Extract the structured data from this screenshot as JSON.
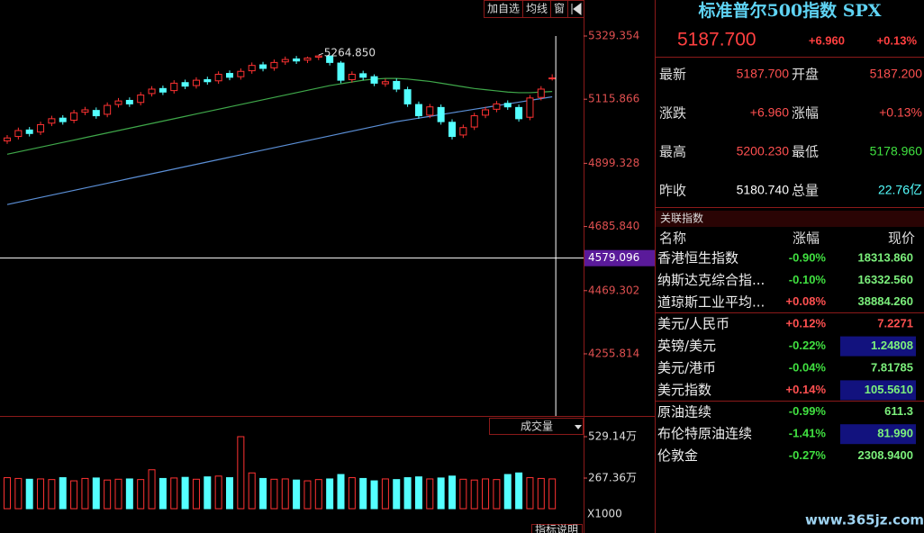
{
  "toolbar": [
    "加自选",
    "均线",
    "窗"
  ],
  "chart_data": {
    "type": "candlestick",
    "open": [
      4975,
      4990,
      5012,
      5005,
      5035,
      5052,
      5045,
      5072,
      5078,
      5065,
      5098,
      5112,
      5105,
      5135,
      5152,
      5145,
      5172,
      5162,
      5182,
      5178,
      5203,
      5192,
      5212,
      5232,
      5222,
      5242,
      5252,
      5248,
      5258,
      5262,
      5238,
      5182,
      5202,
      5192,
      5168,
      5176,
      5148,
      5098,
      5062,
      5088,
      5038,
      4995,
      5022,
      5062,
      5082,
      5102,
      5088,
      5055,
      5122,
      5187.2
    ],
    "high": [
      4995,
      5020,
      5022,
      5040,
      5060,
      5062,
      5080,
      5090,
      5088,
      5105,
      5120,
      5122,
      5140,
      5160,
      5162,
      5180,
      5182,
      5190,
      5192,
      5210,
      5213,
      5220,
      5240,
      5242,
      5250,
      5260,
      5262,
      5260,
      5264.85,
      5263,
      5245,
      5210,
      5212,
      5200,
      5185,
      5186,
      5158,
      5108,
      5100,
      5098,
      5048,
      5030,
      5070,
      5090,
      5110,
      5112,
      5098,
      5130,
      5160,
      5200.23
    ],
    "low": [
      4965,
      4980,
      4990,
      4995,
      5025,
      5030,
      5035,
      5062,
      5050,
      5055,
      5088,
      5090,
      5095,
      5125,
      5130,
      5135,
      5150,
      5152,
      5165,
      5168,
      5180,
      5182,
      5202,
      5210,
      5212,
      5232,
      5235,
      5238,
      5248,
      5230,
      5170,
      5172,
      5180,
      5160,
      5158,
      5140,
      5090,
      5050,
      5052,
      5030,
      4980,
      4985,
      5012,
      5052,
      5072,
      5080,
      5040,
      5045,
      5112,
      5178.96
    ],
    "close": [
      4985,
      5010,
      5000,
      5030,
      5050,
      5040,
      5070,
      5080,
      5060,
      5095,
      5110,
      5100,
      5130,
      5150,
      5140,
      5170,
      5160,
      5180,
      5175,
      5200,
      5190,
      5210,
      5230,
      5220,
      5240,
      5250,
      5245,
      5255,
      5262,
      5240,
      5180,
      5200,
      5190,
      5170,
      5175,
      5150,
      5100,
      5060,
      5090,
      5040,
      4990,
      5020,
      5060,
      5080,
      5100,
      5090,
      5050,
      5120,
      5150,
      5187.7
    ],
    "up_color": "#ff3232",
    "down_color": "#54ffff",
    "ylim": [
      4045.9,
      5390.2
    ],
    "yticks": [
      5329.354,
      5115.866,
      4899.328,
      {
        "value": 4685.84,
        "label": "4685.840"
      },
      4469.302,
      4255.814
    ],
    "crosshair_price": 4579.096,
    "max_label": {
      "value": 5264.85,
      "label": "5264.850"
    },
    "moving_averages": [
      {
        "color": "#5b8fd6",
        "values": [
          4760,
          4768,
          4776,
          4784,
          4792,
          4800,
          4808,
          4816,
          4824,
          4832,
          4840,
          4848,
          4856,
          4864,
          4872,
          4880,
          4888,
          4896,
          4904,
          4912,
          4920,
          4928,
          4936,
          4944,
          4952,
          4960,
          4968,
          4976,
          4984,
          4992,
          5000,
          5008,
          5016,
          5024,
          5032,
          5040,
          5046,
          5052,
          5058,
          5064,
          5070,
          5076,
          5082,
          5088,
          5094,
          5100,
          5106,
          5112,
          5118,
          5124
        ]
      },
      {
        "color": "#3fa84a",
        "values": [
          4930,
          4938,
          4946,
          4954,
          4962,
          4970,
          4978,
          4986,
          4994,
          5002,
          5010,
          5018,
          5026,
          5034,
          5042,
          5050,
          5058,
          5066,
          5074,
          5082,
          5090,
          5098,
          5106,
          5114,
          5122,
          5130,
          5138,
          5146,
          5154,
          5162,
          5168,
          5174,
          5180,
          5184,
          5186,
          5186,
          5184,
          5180,
          5176,
          5170,
          5164,
          5158,
          5152,
          5148,
          5144,
          5140,
          5138,
          5138,
          5140,
          5142
        ]
      }
    ],
    "volume": {
      "label": "成交量",
      "values": [
        270,
        265,
        260,
        262,
        258,
        270,
        250,
        265,
        268,
        255,
        260,
        262,
        258,
        320,
        265,
        268,
        272,
        260,
        275,
        280,
        270,
        529.14,
        300,
        265,
        260,
        262,
        255,
        250,
        258,
        262,
        290,
        270,
        265,
        250,
        262,
        258,
        270,
        275,
        262,
        268,
        280,
        260,
        255,
        262,
        258,
        290,
        300,
        270,
        265,
        262
      ],
      "ylim": [
        73.9,
        557.6
      ],
      "yticks": [
        {
          "value": 529.14,
          "label": "529.14万"
        },
        {
          "value": 267.36,
          "label": "267.36万"
        }
      ],
      "unit": "X1000"
    },
    "footer": "指标说明"
  },
  "quote": {
    "title": "标准普尔500指数 SPX",
    "price": "5187.700",
    "change": "+6.960",
    "change_pct": "+0.13%",
    "rows": [
      [
        {
          "label": "最新",
          "value": "5187.700",
          "color": "#ff5050"
        },
        {
          "label": "开盘",
          "value": "5187.200",
          "color": "#ff5050"
        }
      ],
      [
        {
          "label": "涨跌",
          "value": "+6.960",
          "color": "#ff5050"
        },
        {
          "label": "涨幅",
          "value": "+0.13%",
          "color": "#ff5050"
        }
      ],
      [
        {
          "label": "最高",
          "value": "5200.230",
          "color": "#ff5050"
        },
        {
          "label": "最低",
          "value": "5178.960",
          "color": "#40e040"
        }
      ],
      [
        {
          "label": "昨收",
          "value": "5180.740",
          "color": "#ffffff"
        },
        {
          "label": "总量",
          "value": "22.76亿",
          "color": "#54ffff"
        }
      ]
    ]
  },
  "related": {
    "title": "关联指数",
    "columns": [
      "名称",
      "涨幅",
      "现价"
    ],
    "rows": [
      {
        "name": "香港恒生指数",
        "change": "-0.90%",
        "price": "18313.860",
        "highlight": false
      },
      {
        "name": "纳斯达克综合指...",
        "change": "-0.10%",
        "price": "16332.560",
        "highlight": false
      },
      {
        "name": "道琼斯工业平均...",
        "change": "+0.08%",
        "price": "38884.260",
        "highlight": false
      },
      {
        "name": "美元/人民币",
        "change": "+0.12%",
        "price": "7.2271",
        "highlight": false
      },
      {
        "name": "英镑/美元",
        "change": "-0.22%",
        "price": "1.24808",
        "highlight": true
      },
      {
        "name": "美元/港币",
        "change": "-0.04%",
        "price": "7.81785",
        "highlight": false
      },
      {
        "name": "美元指数",
        "change": "+0.14%",
        "price": "105.5610",
        "highlight": true
      },
      {
        "name": "原油连续",
        "change": "-0.99%",
        "price": "611.3",
        "highlight": false
      },
      {
        "name": "布伦特原油连续",
        "change": "-1.41%",
        "price": "81.990",
        "highlight": true
      },
      {
        "name": "伦敦金",
        "change": "-0.27%",
        "price": "2308.9400",
        "highlight": false
      }
    ]
  },
  "watermark": "www.365jz.com"
}
